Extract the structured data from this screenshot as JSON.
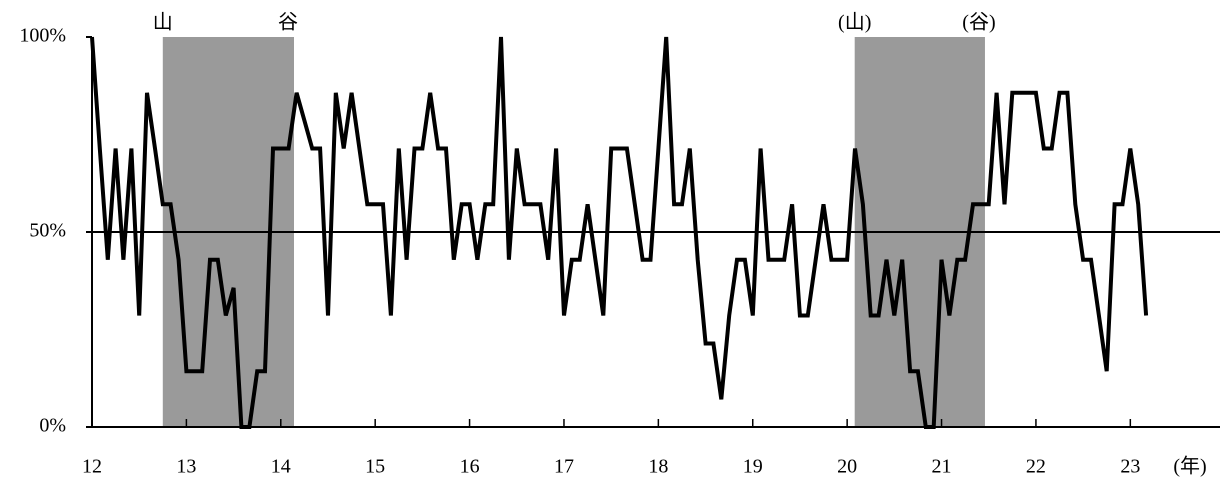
{
  "chart_data": {
    "type": "line",
    "color": "#000000",
    "x": [
      12,
      12.083,
      12.167,
      12.25,
      12.333,
      12.417,
      12.5,
      12.583,
      12.667,
      12.75,
      12.833,
      12.917,
      13,
      13.083,
      13.167,
      13.25,
      13.333,
      13.417,
      13.5,
      13.583,
      13.667,
      13.75,
      13.833,
      13.917,
      14,
      14.083,
      14.167,
      14.25,
      14.333,
      14.417,
      14.5,
      14.583,
      14.667,
      14.75,
      14.833,
      14.917,
      15,
      15.083,
      15.167,
      15.25,
      15.333,
      15.417,
      15.5,
      15.583,
      15.667,
      15.75,
      15.833,
      15.917,
      16,
      16.083,
      16.167,
      16.25,
      16.333,
      16.417,
      16.5,
      16.583,
      16.667,
      16.75,
      16.833,
      16.917,
      17,
      17.083,
      17.167,
      17.25,
      17.333,
      17.417,
      17.5,
      17.583,
      17.667,
      17.75,
      17.833,
      17.917,
      18,
      18.083,
      18.167,
      18.25,
      18.333,
      18.417,
      18.5,
      18.583,
      18.667,
      18.75,
      18.833,
      18.917,
      19,
      19.083,
      19.167,
      19.25,
      19.333,
      19.417,
      19.5,
      19.583,
      19.667,
      19.75,
      19.833,
      19.917,
      20,
      20.083,
      20.167,
      20.25,
      20.333,
      20.417,
      20.5,
      20.583,
      20.667,
      20.75,
      20.833,
      20.917,
      21,
      21.083,
      21.167,
      21.25,
      21.333,
      21.417,
      21.5,
      21.583,
      21.667,
      21.75,
      21.833,
      21.917,
      22,
      22.083,
      22.167,
      22.25,
      22.333,
      22.417,
      22.5,
      22.583,
      22.667,
      22.75,
      22.833,
      22.917,
      23,
      23.083,
      23.167
    ],
    "values": [
      100,
      71.4,
      42.9,
      71.4,
      42.9,
      71.4,
      28.6,
      85.7,
      71.4,
      57.1,
      57.1,
      42.9,
      14.3,
      14.3,
      14.3,
      42.9,
      42.9,
      28.6,
      35.7,
      0,
      0,
      14.3,
      14.3,
      71.4,
      71.4,
      71.4,
      85.7,
      78.6,
      71.4,
      71.4,
      28.6,
      85.7,
      71.4,
      85.7,
      71.4,
      57.1,
      57.1,
      57.1,
      28.6,
      71.4,
      42.9,
      71.4,
      71.4,
      85.7,
      71.4,
      71.4,
      42.9,
      57.1,
      57.1,
      42.9,
      57.1,
      57.1,
      100,
      42.9,
      71.4,
      57.1,
      57.1,
      57.1,
      42.9,
      71.4,
      28.6,
      42.9,
      42.9,
      57.1,
      42.9,
      28.6,
      71.4,
      71.4,
      71.4,
      57.1,
      42.9,
      42.9,
      71.4,
      100,
      57.1,
      57.1,
      71.4,
      42.9,
      21.4,
      21.4,
      7.1,
      28.6,
      42.9,
      42.9,
      28.6,
      71.4,
      42.9,
      42.9,
      42.9,
      57.1,
      28.6,
      28.6,
      42.9,
      57.1,
      42.9,
      42.9,
      42.9,
      71.4,
      57.1,
      28.6,
      28.6,
      42.9,
      28.6,
      42.9,
      14.3,
      14.3,
      0,
      0,
      42.9,
      28.6,
      42.9,
      42.9,
      57.1,
      57.1,
      57.1,
      85.7,
      57.1,
      85.7,
      85.7,
      85.7,
      85.7,
      71.4,
      71.4,
      85.7,
      85.7,
      57.1,
      42.9,
      42.9,
      28.6,
      14.3,
      57.1,
      57.1,
      71.4,
      57.1,
      28.6
    ],
    "xlim": [
      12,
      23.95
    ],
    "xticks": [
      12,
      13,
      14,
      15,
      16,
      17,
      18,
      19,
      20,
      21,
      22,
      23
    ],
    "x_unit": "(年)",
    "ylim": [
      0,
      100
    ],
    "yticks": [
      {
        "value": 0,
        "label": "0%"
      },
      {
        "value": 50,
        "label": "50%"
      },
      {
        "value": 100,
        "label": "100%"
      }
    ],
    "reference_line": 50,
    "shaded_regions": [
      {
        "start": 12.75,
        "end": 14.14,
        "start_label": "山",
        "end_label": "谷",
        "color": "#9a9a9a"
      },
      {
        "start": 20.08,
        "end": 21.46,
        "start_label": "(山)",
        "end_label": "(谷)",
        "color": "#9a9a9a"
      }
    ]
  }
}
